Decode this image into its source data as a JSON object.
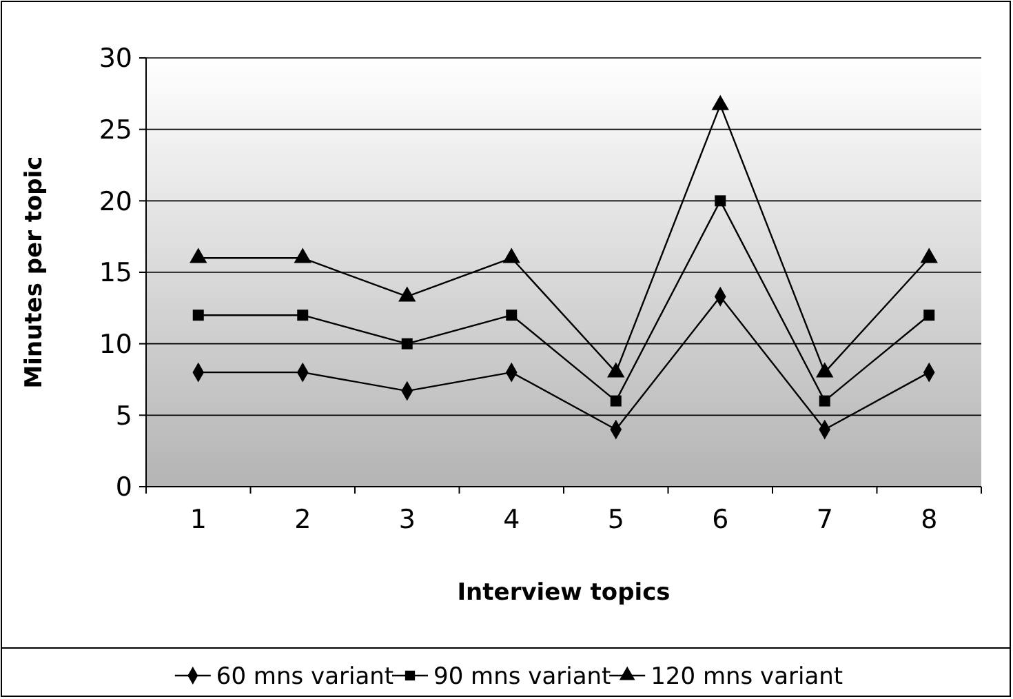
{
  "chart_data": {
    "type": "line",
    "xlabel": "Interview topics",
    "ylabel": "Minutes per topic",
    "categories": [
      "1",
      "2",
      "3",
      "4",
      "5",
      "6",
      "7",
      "8"
    ],
    "series": [
      {
        "name": "60 mns variant",
        "color": "#000000",
        "marker": "diamond",
        "values": [
          8,
          8,
          6.7,
          8,
          4,
          13.3,
          4,
          8
        ]
      },
      {
        "name": "90 mns variant",
        "color": "#000000",
        "marker": "square",
        "values": [
          12,
          12,
          10,
          12,
          6,
          20,
          6,
          12
        ]
      },
      {
        "name": "120 mns variant",
        "color": "#000000",
        "marker": "triangle",
        "values": [
          16,
          16,
          13.3,
          16,
          8,
          26.7,
          8,
          16
        ]
      }
    ],
    "ylim": [
      0,
      30
    ],
    "yticks": [
      0,
      5,
      10,
      15,
      20,
      25,
      30
    ],
    "grid": "y",
    "legend": "bottom",
    "line_style": "solid"
  }
}
